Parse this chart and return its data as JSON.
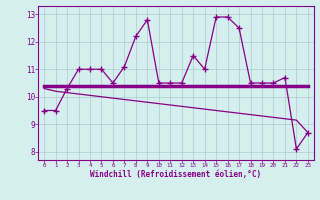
{
  "xlabel": "Windchill (Refroidissement éolien,°C)",
  "hours": [
    0,
    1,
    2,
    3,
    4,
    5,
    6,
    7,
    8,
    9,
    10,
    11,
    12,
    13,
    14,
    15,
    16,
    17,
    18,
    19,
    20,
    21,
    22,
    23
  ],
  "windchill": [
    9.5,
    9.5,
    10.3,
    11.0,
    11.0,
    11.0,
    10.5,
    11.1,
    12.2,
    12.8,
    10.5,
    10.5,
    10.5,
    11.5,
    11.0,
    12.9,
    12.9,
    12.5,
    10.5,
    10.5,
    10.5,
    10.7,
    8.1,
    8.7
  ],
  "trend_flat": [
    10.4,
    10.4,
    10.4,
    10.4,
    10.4,
    10.4,
    10.4,
    10.4,
    10.4,
    10.4,
    10.4,
    10.4,
    10.4,
    10.4,
    10.4,
    10.4,
    10.4,
    10.4,
    10.4,
    10.4,
    10.4,
    10.4,
    10.4,
    10.4
  ],
  "trend_diag": [
    10.3,
    10.2,
    10.15,
    10.1,
    10.05,
    10.0,
    9.95,
    9.9,
    9.85,
    9.8,
    9.75,
    9.7,
    9.65,
    9.6,
    9.55,
    9.5,
    9.45,
    9.4,
    9.35,
    9.3,
    9.25,
    9.2,
    9.15,
    8.7
  ],
  "ylim": [
    7.7,
    13.3
  ],
  "xlim": [
    -0.5,
    23.5
  ],
  "line_color": "#880088",
  "bg_color": "#d5eeee",
  "grid_color": "#b8dede",
  "tick_color": "#880088",
  "label_color": "#880088"
}
